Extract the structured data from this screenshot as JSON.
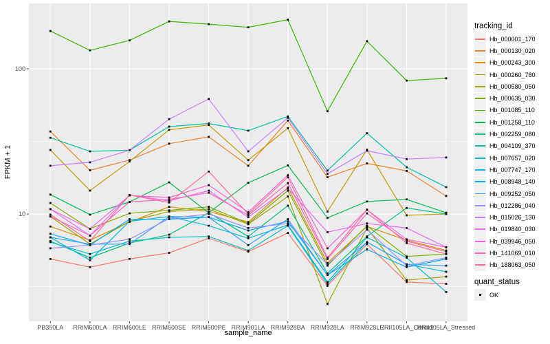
{
  "figure": {
    "background": "#FFFFFF",
    "panel_background": "#EBEBEB",
    "grid_color": "#FFFFFF",
    "tick_text_color": "#4D4D4D",
    "point_color": "#000000"
  },
  "axes": {
    "x_title": "sample_name",
    "y_title": "FPKM + 1",
    "y_ticks": [
      {
        "label": "100",
        "value": 100
      },
      {
        "label": "10",
        "value": 10
      }
    ]
  },
  "legend": {
    "tracking_title": "tracking_id",
    "quant_title": "quant_status",
    "quant_entries": [
      {
        "label": "OK",
        "marker": "black-square"
      }
    ]
  },
  "chart_data": {
    "type": "line",
    "title": "",
    "xlabel": "sample_name",
    "ylabel": "FPKM + 1",
    "y_scale": "log10",
    "ylim": [
      1.8,
      290
    ],
    "grid": true,
    "legend_position": "right",
    "point_marker": "black-square",
    "categories": [
      "PB350LA",
      "RRIM600LA",
      "RRIM600LE",
      "RRIM600SE",
      "RRIM600PE",
      "RRIM901LA",
      "RRIM928BA",
      "RRIM928LA",
      "RRIM928LE",
      "RRII105LA_Control",
      "RRII105LA_Stressed"
    ],
    "series": [
      {
        "name": "Hb_000001_170",
        "color": "#F8766D",
        "values": [
          4.9,
          4.3,
          4.9,
          5.4,
          6.8,
          5.5,
          7.4,
          3.2,
          6.2,
          3.4,
          3.3
        ]
      },
      {
        "name": "Hb_000130_020",
        "color": "#EA8331",
        "values": [
          37,
          20,
          23.5,
          30.5,
          34,
          21.5,
          44,
          17.9,
          22.3,
          19.8,
          13.3
        ]
      },
      {
        "name": "Hb_000243_300",
        "color": "#D89000",
        "values": [
          8.2,
          6.6,
          8.8,
          11.2,
          10.4,
          8.8,
          15.2,
          4.6,
          8.2,
          6.6,
          5.6
        ]
      },
      {
        "name": "Hb_000260_780",
        "color": "#C09B00",
        "values": [
          27.6,
          14.5,
          23,
          38,
          41,
          23.5,
          39,
          10.4,
          27.7,
          9.8,
          10.0
        ]
      },
      {
        "name": "Hb_000580_050",
        "color": "#A3A500",
        "values": [
          9.6,
          6.2,
          8.9,
          10.4,
          10.8,
          8.5,
          13.2,
          2.4,
          8.0,
          3.5,
          3.7
        ]
      },
      {
        "name": "Hb_000635_030",
        "color": "#7CAE00",
        "values": [
          11.9,
          7.9,
          10.1,
          10.6,
          11.2,
          8.6,
          14.5,
          4.4,
          8.3,
          5.1,
          5.3
        ]
      },
      {
        "name": "Hb_001085_110",
        "color": "#39B600",
        "values": [
          182,
          134,
          157,
          212,
          203,
          193,
          218,
          51,
          155,
          83,
          86
        ]
      },
      {
        "name": "Hb_001258_110",
        "color": "#00BB4E",
        "values": [
          13.6,
          9.9,
          12.1,
          16.5,
          10.2,
          16.4,
          21.6,
          9.4,
          12.2,
          12.6,
          10.2
        ]
      },
      {
        "name": "Hb_002259_080",
        "color": "#00BF7D",
        "values": [
          6.5,
          5.0,
          6.3,
          7.2,
          10.2,
          7.0,
          11.4,
          3.9,
          7.0,
          11.0,
          10.0
        ]
      },
      {
        "name": "Hb_004109_370",
        "color": "#00C1A3",
        "values": [
          33.5,
          27,
          27.5,
          40,
          42,
          37.5,
          47,
          19.9,
          36,
          21,
          15.3
        ]
      },
      {
        "name": "Hb_007657_020",
        "color": "#00BFC4",
        "values": [
          6.4,
          5.3,
          6.5,
          6.9,
          7.0,
          5.6,
          8.3,
          3.3,
          6.4,
          4.5,
          4.0
        ]
      },
      {
        "name": "Hb_007747_170",
        "color": "#00BAE0",
        "values": [
          6.9,
          4.8,
          8.9,
          9.6,
          8.3,
          6.8,
          8.4,
          3.4,
          6.9,
          5.0,
          2.9
        ]
      },
      {
        "name": "Hb_008948_140",
        "color": "#00B0F6",
        "values": [
          7.3,
          6.1,
          9.2,
          9.2,
          9.5,
          7.7,
          8.9,
          3.8,
          5.7,
          4.3,
          4.9
        ]
      },
      {
        "name": "Hb_009252_050",
        "color": "#35A2FF",
        "values": [
          6.9,
          6.2,
          6.2,
          9.6,
          9.5,
          6.1,
          9.2,
          3.8,
          6.4,
          4.5,
          4.4
        ]
      },
      {
        "name": "Hb_012286_040",
        "color": "#9590FF",
        "values": [
          5.8,
          6.1,
          6.7,
          9.3,
          10.0,
          8.0,
          8.6,
          4.5,
          7.8,
          4.4,
          5.0
        ]
      },
      {
        "name": "Hb_015026_130",
        "color": "#C77CFF",
        "values": [
          21.5,
          22.7,
          27.5,
          45,
          62,
          27,
          46,
          18.9,
          27.3,
          23.9,
          24.5
        ]
      },
      {
        "name": "Hb_019840_030",
        "color": "#E76BF3",
        "values": [
          10.8,
          7.1,
          13.5,
          12.3,
          14.5,
          9.5,
          15.0,
          7.5,
          8.6,
          8.0,
          5.9
        ]
      },
      {
        "name": "Hb_039946_050",
        "color": "#FA62DB",
        "values": [
          10.8,
          7.9,
          13.4,
          13.0,
          15.8,
          10.3,
          18.5,
          5.8,
          10.7,
          6.7,
          5.9
        ]
      },
      {
        "name": "Hb_141069_010",
        "color": "#FF62BC",
        "values": [
          9.6,
          7.1,
          12.1,
          12.6,
          14.0,
          9.8,
          16.3,
          4.9,
          10.1,
          6.5,
          5.5
        ]
      },
      {
        "name": "Hb_188063_050",
        "color": "#FF6A98",
        "values": [
          9.9,
          6.5,
          13.5,
          12.0,
          19.6,
          10.0,
          17.9,
          5.0,
          10.7,
          6.3,
          5.3
        ]
      }
    ]
  }
}
